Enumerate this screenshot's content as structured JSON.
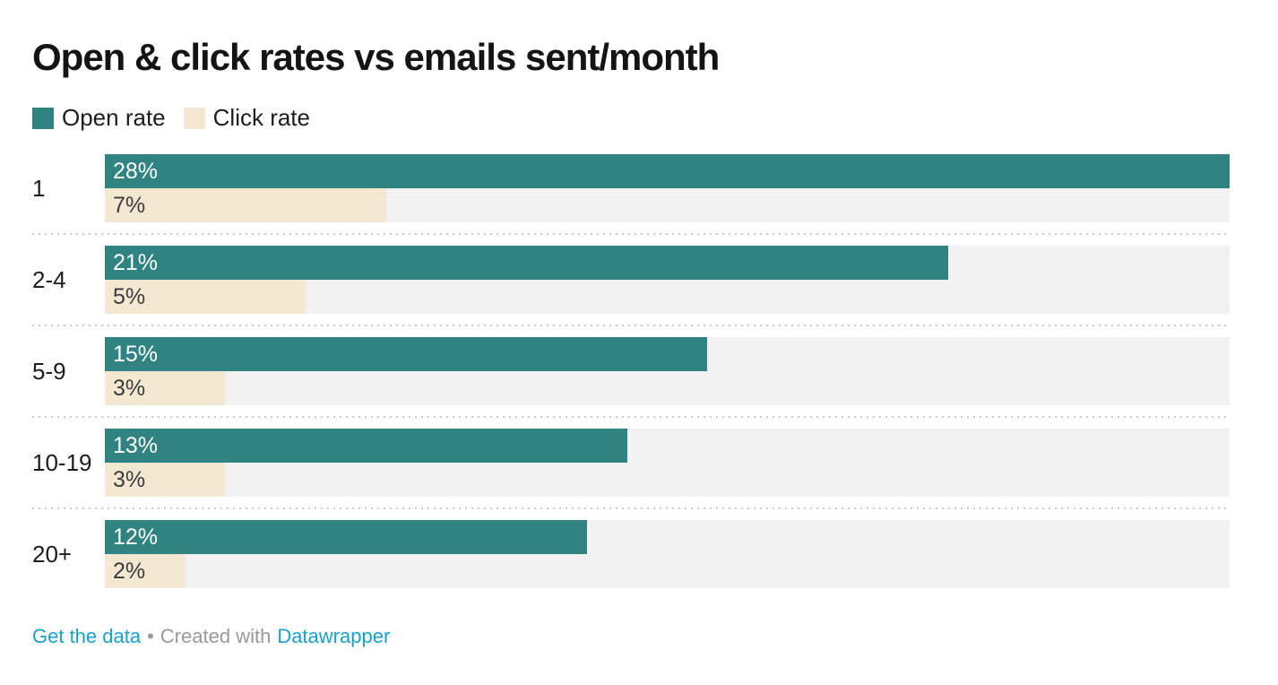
{
  "title": "Open & click rates vs emails sent/month",
  "legend": {
    "items": [
      {
        "label": "Open rate",
        "color": "#308380"
      },
      {
        "label": "Click rate",
        "color": "#f4e8d2"
      }
    ]
  },
  "colors": {
    "open_bar": "#308380",
    "click_bar": "#f4e8d2",
    "track_background": "#f2f2f2",
    "separator": "#c9c9c9",
    "link_blue": "#18a1cd",
    "footer_gray": "#9a9a9a"
  },
  "chart_data": {
    "type": "bar",
    "orientation": "horizontal",
    "title": "Open & click rates vs emails sent/month",
    "categories": [
      "1",
      "2-4",
      "5-9",
      "10-19",
      "20+"
    ],
    "series": [
      {
        "name": "Open rate",
        "color": "#308380",
        "values": [
          28,
          21,
          15,
          13,
          12
        ],
        "labels": [
          "28%",
          "21%",
          "15%",
          "13%",
          "12%"
        ]
      },
      {
        "name": "Click rate",
        "color": "#f4e8d2",
        "values": [
          7,
          5,
          3,
          3,
          2
        ],
        "labels": [
          "7%",
          "5%",
          "3%",
          "3%",
          "2%"
        ]
      }
    ],
    "xlim": [
      0,
      28
    ],
    "value_suffix": "%",
    "grid": "off",
    "legend_position": "top-left",
    "row_separators": "dotted"
  },
  "footer": {
    "get_data_label": "Get the data",
    "dot": "•",
    "created_with": "Created with",
    "datawrapper_label": "Datawrapper"
  }
}
